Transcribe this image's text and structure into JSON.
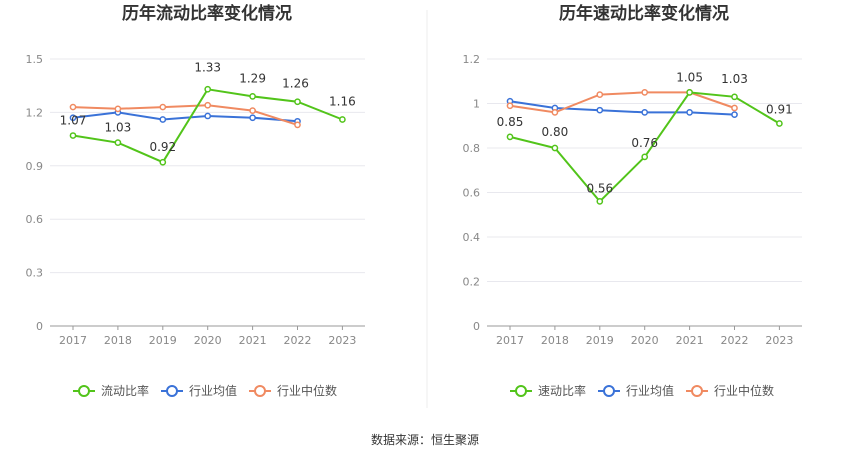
{
  "source": "数据来源：恒生聚源",
  "colors": {
    "company": "#52c41a",
    "industry_avg": "#3a72d8",
    "industry_median": "#f08a61"
  },
  "chart_data": [
    {
      "type": "line",
      "title": "历年流动比率变化情况",
      "x": [
        "2017",
        "2018",
        "2019",
        "2020",
        "2021",
        "2022",
        "2023"
      ],
      "ylim": [
        0,
        1.5
      ],
      "yticks": [
        "0",
        "0.3",
        "0.6",
        "0.9",
        "1.2",
        "1.5"
      ],
      "ytick_values": [
        0,
        0.3,
        0.6,
        0.9,
        1.2,
        1.5
      ],
      "grid": true,
      "legend": "bottom",
      "series": [
        {
          "name": "流动比率",
          "role": "company",
          "values": [
            1.07,
            1.03,
            0.92,
            1.33,
            1.29,
            1.26,
            1.16
          ],
          "labels": [
            "1.07",
            "1.03",
            "0.92",
            "1.33",
            "1.29",
            "1.26",
            "1.16"
          ]
        },
        {
          "name": "行业均值",
          "role": "industry_avg",
          "values": [
            1.17,
            1.2,
            1.16,
            1.18,
            1.17,
            1.15,
            null
          ]
        },
        {
          "name": "行业中位数",
          "role": "industry_median",
          "values": [
            1.23,
            1.22,
            1.23,
            1.24,
            1.21,
            1.13,
            null
          ]
        }
      ]
    },
    {
      "type": "line",
      "title": "历年速动比率变化情况",
      "x": [
        "2017",
        "2018",
        "2019",
        "2020",
        "2021",
        "2022",
        "2023"
      ],
      "ylim": [
        0,
        1.2
      ],
      "yticks": [
        "0",
        "0.2",
        "0.4",
        "0.6",
        "0.8",
        "1",
        "1.2"
      ],
      "ytick_values": [
        0,
        0.2,
        0.4,
        0.6,
        0.8,
        1.0,
        1.2
      ],
      "grid": true,
      "legend": "bottom",
      "series": [
        {
          "name": "速动比率",
          "role": "company",
          "values": [
            0.85,
            0.8,
            0.56,
            0.76,
            1.05,
            1.03,
            0.91
          ],
          "labels": [
            "0.85",
            "0.80",
            "0.56",
            "0.76",
            "1.05",
            "1.03",
            "0.91"
          ]
        },
        {
          "name": "行业均值",
          "role": "industry_avg",
          "values": [
            1.01,
            0.98,
            0.97,
            0.96,
            0.96,
            0.95,
            null
          ]
        },
        {
          "name": "行业中位数",
          "role": "industry_median",
          "values": [
            0.99,
            0.96,
            1.04,
            1.05,
            1.05,
            0.98,
            null
          ]
        }
      ]
    }
  ]
}
